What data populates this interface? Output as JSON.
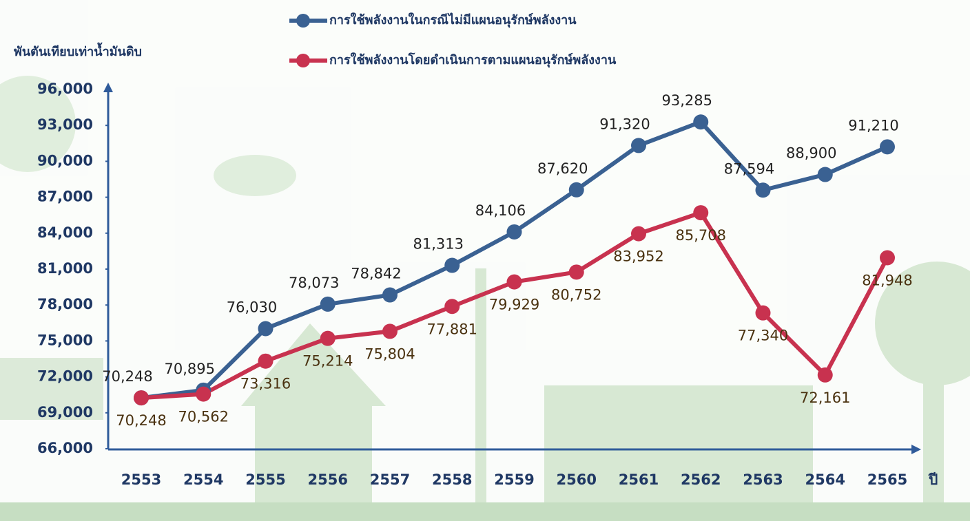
{
  "chart_data": {
    "type": "line",
    "y_label": "พันตันเทียบเท่าน้ำมันดิบ",
    "x_label": "ปี",
    "categories": [
      "2553",
      "2554",
      "2555",
      "2556",
      "2557",
      "2558",
      "2559",
      "2560",
      "2561",
      "2562",
      "2563",
      "2564",
      "2565"
    ],
    "series": [
      {
        "name": "การใช้พลังงานในกรณีไม่มีแผนอนุรักษ์พลังงาน",
        "color": "#3a6192",
        "values": [
          70248,
          70895,
          76030,
          78073,
          78842,
          81313,
          84106,
          87620,
          91320,
          93285,
          87594,
          88900,
          91210
        ],
        "value_labels": [
          "70,248",
          "70,895",
          "76,030",
          "78,073",
          "78,842",
          "81,313",
          "84,106",
          "87,620",
          "91,320",
          "93,285",
          "87,594",
          "88,900",
          "91,210"
        ]
      },
      {
        "name": "การใช้พลังงานโดยดำเนินการตามแผนอนุรักษ์พลังงาน",
        "color": "#c8324f",
        "values": [
          70248,
          70562,
          73316,
          75214,
          75804,
          77881,
          79929,
          80752,
          83952,
          85708,
          77340,
          72161,
          81948
        ],
        "value_labels": [
          "70,248",
          "70,562",
          "73,316",
          "75,214",
          "75,804",
          "77,881",
          "79,929",
          "80,752",
          "83,952",
          "85,708",
          "77,340",
          "72,161",
          "81,948"
        ]
      }
    ],
    "ylim": [
      66000,
      96000
    ],
    "yticks": [
      {
        "value": 66000,
        "label": "66,000"
      },
      {
        "value": 69000,
        "label": "69,000"
      },
      {
        "value": 72000,
        "label": "72,000"
      },
      {
        "value": 75000,
        "label": "75,000"
      },
      {
        "value": 78000,
        "label": "78,000"
      },
      {
        "value": 81000,
        "label": "81,000"
      },
      {
        "value": 84000,
        "label": "84,000"
      },
      {
        "value": 87000,
        "label": "87,000"
      },
      {
        "value": 90000,
        "label": "90,000"
      },
      {
        "value": 93000,
        "label": "93,000"
      },
      {
        "value": 96000,
        "label": "96,000"
      }
    ],
    "grid": false
  }
}
